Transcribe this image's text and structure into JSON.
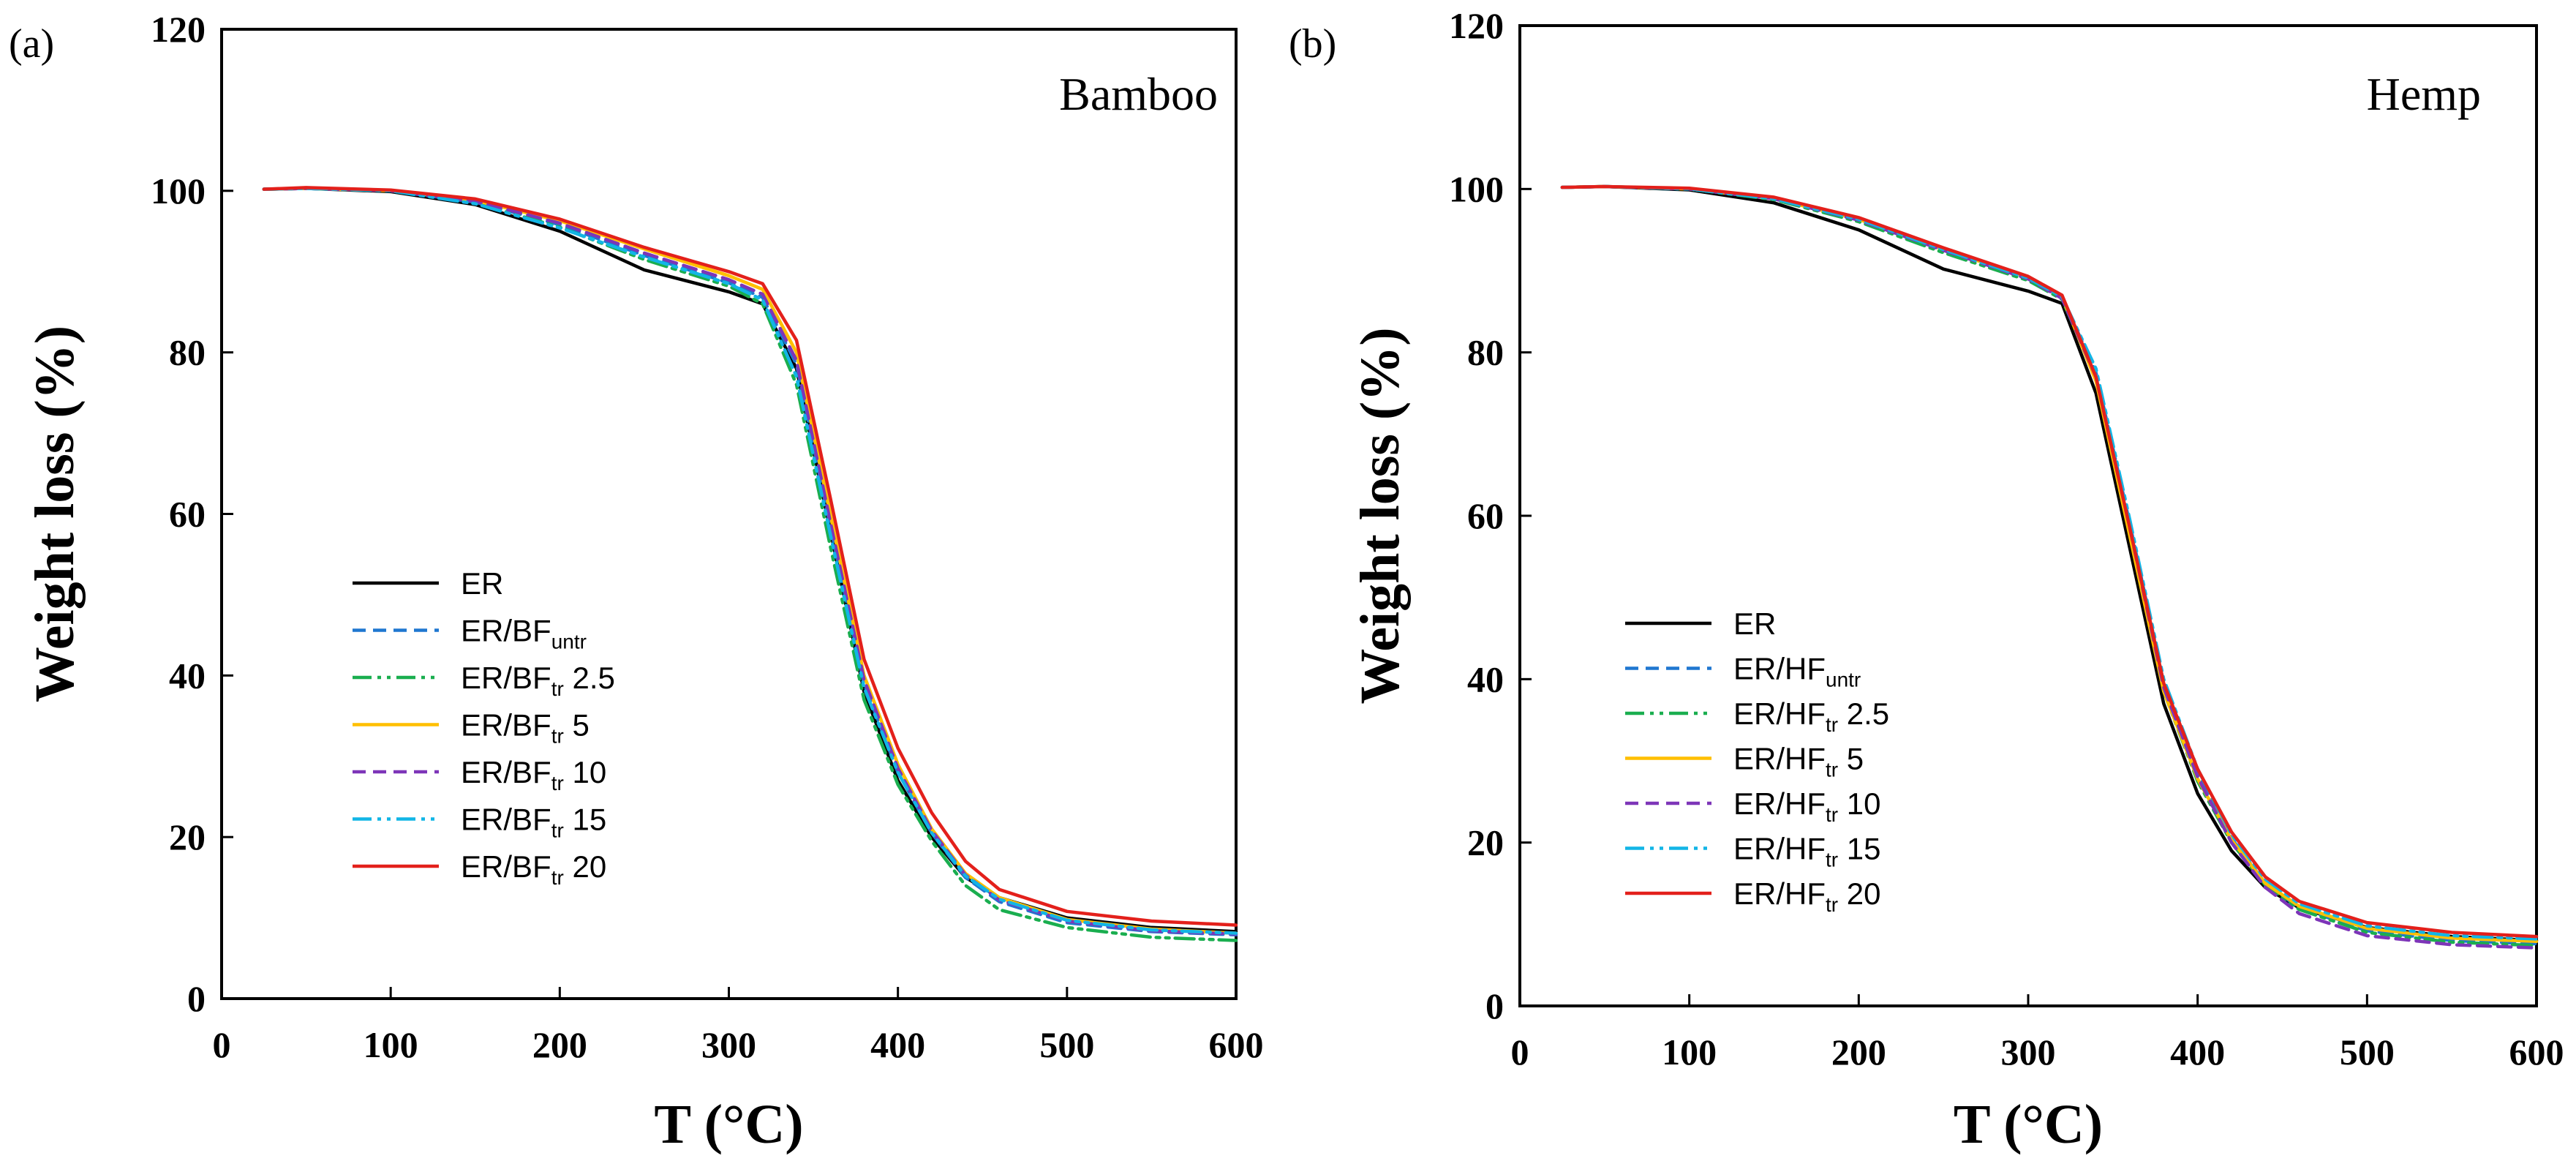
{
  "chart_data": [
    {
      "type": "line",
      "panel_label": "(a)",
      "corner_label": "Bamboo",
      "xlabel": "T (°C)",
      "ylabel": "Weight loss (%)",
      "xlim": [
        0,
        600
      ],
      "ylim": [
        0,
        120
      ],
      "xticks": [
        "0",
        "100",
        "200",
        "300",
        "400",
        "500",
        "600"
      ],
      "yticks": [
        "0",
        "20",
        "40",
        "60",
        "80",
        "100",
        "120"
      ],
      "grid": false,
      "legend_position": "center-left",
      "series": [
        {
          "name": "ER",
          "legend_main": "ER",
          "legend_sub": "",
          "legend_suffix": "",
          "color": "#000000",
          "dash": "solid",
          "x": [
            25,
            50,
            100,
            150,
            200,
            250,
            300,
            320,
            340,
            360,
            380,
            400,
            420,
            440,
            460,
            500,
            550,
            600
          ],
          "y": [
            100.2,
            100.3,
            99.9,
            98.3,
            95.0,
            90.2,
            87.5,
            86.0,
            78.0,
            58.0,
            38.0,
            27.0,
            20.0,
            15.0,
            12.5,
            10.0,
            8.8,
            8.3
          ]
        },
        {
          "name": "ER/BFuntr",
          "legend_main": "ER/BF",
          "legend_sub": "untr",
          "legend_suffix": "",
          "color": "#1f77d0",
          "dash": "dashed",
          "x": [
            25,
            50,
            100,
            150,
            200,
            250,
            300,
            320,
            340,
            360,
            380,
            400,
            420,
            440,
            460,
            500,
            550,
            600
          ],
          "y": [
            100.2,
            100.3,
            100.0,
            98.6,
            95.8,
            92.0,
            88.6,
            86.8,
            78.5,
            58.5,
            39.0,
            28.0,
            20.5,
            15.0,
            12.0,
            9.4,
            8.3,
            7.9
          ]
        },
        {
          "name": "ER/BFtr 2.5",
          "legend_main": "ER/BF",
          "legend_sub": "tr",
          "legend_suffix": " 2.5",
          "color": "#1aae4f",
          "dash": "dashdotdot",
          "x": [
            25,
            50,
            100,
            150,
            200,
            250,
            300,
            320,
            340,
            360,
            380,
            400,
            420,
            440,
            460,
            500,
            550,
            600
          ],
          "y": [
            100.2,
            100.3,
            100.0,
            98.5,
            95.5,
            91.5,
            88.2,
            86.0,
            76.0,
            56.0,
            37.0,
            26.5,
            19.5,
            14.0,
            11.0,
            8.8,
            7.6,
            7.2
          ]
        },
        {
          "name": "ER/BFtr 5",
          "legend_main": "ER/BF",
          "legend_sub": "tr",
          "legend_suffix": " 5",
          "color": "#ffbf00",
          "dash": "solid",
          "x": [
            25,
            50,
            100,
            150,
            200,
            250,
            300,
            320,
            340,
            360,
            380,
            400,
            420,
            440,
            460,
            500,
            550,
            600
          ],
          "y": [
            100.2,
            100.3,
            100.0,
            98.8,
            96.3,
            92.8,
            89.5,
            87.8,
            80.0,
            60.0,
            40.0,
            29.0,
            21.0,
            15.5,
            12.5,
            9.8,
            8.6,
            8.1
          ]
        },
        {
          "name": "ER/BFtr 10",
          "legend_main": "ER/BF",
          "legend_sub": "tr",
          "legend_suffix": " 10",
          "color": "#7d35b8",
          "dash": "dashed",
          "x": [
            25,
            50,
            100,
            150,
            200,
            250,
            300,
            320,
            340,
            360,
            380,
            400,
            420,
            440,
            460,
            500,
            550,
            600
          ],
          "y": [
            100.2,
            100.3,
            100.0,
            98.7,
            96.0,
            92.3,
            89.0,
            87.2,
            79.0,
            59.0,
            39.5,
            28.5,
            20.8,
            15.3,
            12.2,
            9.6,
            8.4,
            8.0
          ]
        },
        {
          "name": "ER/BFtr 15",
          "legend_main": "ER/BF",
          "legend_sub": "tr",
          "legend_suffix": " 15",
          "color": "#12b5e6",
          "dash": "dashdotdot",
          "x": [
            25,
            50,
            100,
            150,
            200,
            250,
            300,
            320,
            340,
            360,
            380,
            400,
            420,
            440,
            460,
            500,
            550,
            600
          ],
          "y": [
            100.2,
            100.3,
            100.0,
            98.4,
            95.4,
            91.8,
            88.5,
            86.5,
            77.0,
            57.5,
            38.5,
            28.0,
            20.5,
            15.2,
            12.3,
            9.7,
            8.5,
            8.1
          ]
        },
        {
          "name": "ER/BFtr 20",
          "legend_main": "ER/BF",
          "legend_sub": "tr",
          "legend_suffix": " 20",
          "color": "#e3201b",
          "dash": "solid",
          "x": [
            25,
            50,
            100,
            150,
            200,
            250,
            300,
            320,
            340,
            360,
            380,
            400,
            420,
            440,
            460,
            500,
            550,
            600
          ],
          "y": [
            100.2,
            100.4,
            100.1,
            99.0,
            96.5,
            93.0,
            90.0,
            88.5,
            81.5,
            62.0,
            42.0,
            31.0,
            23.0,
            17.0,
            13.5,
            10.8,
            9.6,
            9.1
          ]
        }
      ]
    },
    {
      "type": "line",
      "panel_label": "(b)",
      "corner_label": "Hemp",
      "xlabel": "T (°C)",
      "ylabel": "Weight loss (%)",
      "xlim": [
        0,
        600
      ],
      "ylim": [
        0,
        120
      ],
      "xticks": [
        "0",
        "100",
        "200",
        "300",
        "400",
        "500",
        "600"
      ],
      "yticks": [
        "0",
        "20",
        "40",
        "60",
        "80",
        "100",
        "120"
      ],
      "grid": false,
      "legend_position": "center-left",
      "series": [
        {
          "name": "ER",
          "legend_main": "ER",
          "legend_sub": "",
          "legend_suffix": "",
          "color": "#000000",
          "dash": "solid",
          "x": [
            25,
            50,
            100,
            150,
            200,
            250,
            300,
            320,
            340,
            360,
            380,
            400,
            420,
            440,
            460,
            500,
            550,
            600
          ],
          "y": [
            100.2,
            100.3,
            99.9,
            98.3,
            95.0,
            90.2,
            87.5,
            86.0,
            75.0,
            56.0,
            37.0,
            26.0,
            19.0,
            14.5,
            12.0,
            9.6,
            8.5,
            8.0
          ]
        },
        {
          "name": "ER/HFuntr",
          "legend_main": "ER/HF",
          "legend_sub": "untr",
          "legend_suffix": "",
          "color": "#1f77d0",
          "dash": "dashed",
          "x": [
            25,
            50,
            100,
            150,
            200,
            250,
            300,
            320,
            340,
            360,
            380,
            400,
            420,
            440,
            460,
            500,
            550,
            600
          ],
          "y": [
            100.2,
            100.3,
            100.0,
            98.8,
            96.2,
            92.5,
            89.0,
            86.8,
            77.5,
            59.0,
            39.5,
            28.5,
            20.5,
            15.0,
            12.0,
            9.2,
            8.0,
            7.6
          ]
        },
        {
          "name": "ER/HFtr 2.5",
          "legend_main": "ER/HF",
          "legend_sub": "tr",
          "legend_suffix": " 2.5",
          "color": "#1aae4f",
          "dash": "dashdotdot",
          "x": [
            25,
            50,
            100,
            150,
            200,
            250,
            300,
            320,
            340,
            360,
            380,
            400,
            420,
            440,
            460,
            500,
            550,
            600
          ],
          "y": [
            100.2,
            100.3,
            100.0,
            98.7,
            96.0,
            92.2,
            88.8,
            86.5,
            77.0,
            58.0,
            38.5,
            27.5,
            20.0,
            14.8,
            11.8,
            9.0,
            7.8,
            7.4
          ]
        },
        {
          "name": "ER/HFtr 5",
          "legend_main": "ER/HF",
          "legend_sub": "tr",
          "legend_suffix": " 5",
          "color": "#ffbf00",
          "dash": "solid",
          "x": [
            25,
            50,
            100,
            150,
            200,
            250,
            300,
            320,
            340,
            360,
            380,
            400,
            420,
            440,
            460,
            500,
            550,
            600
          ],
          "y": [
            100.2,
            100.3,
            100.0,
            98.8,
            96.3,
            92.6,
            89.2,
            86.8,
            76.5,
            57.5,
            38.5,
            27.8,
            20.3,
            15.0,
            12.2,
            9.5,
            8.3,
            7.9
          ]
        },
        {
          "name": "ER/HFtr 10",
          "legend_main": "ER/HF",
          "legend_sub": "tr",
          "legend_suffix": " 10",
          "color": "#7d35b8",
          "dash": "dashed",
          "x": [
            25,
            50,
            100,
            150,
            200,
            250,
            300,
            320,
            340,
            360,
            380,
            400,
            420,
            440,
            460,
            500,
            550,
            600
          ],
          "y": [
            100.2,
            100.3,
            100.0,
            98.8,
            96.2,
            92.5,
            89.0,
            86.6,
            77.0,
            58.5,
            39.0,
            28.0,
            20.0,
            14.5,
            11.3,
            8.6,
            7.5,
            7.1
          ]
        },
        {
          "name": "ER/HFtr 15",
          "legend_main": "ER/HF",
          "legend_sub": "tr",
          "legend_suffix": " 15",
          "color": "#12b5e6",
          "dash": "dashdotdot",
          "x": [
            25,
            50,
            100,
            150,
            200,
            250,
            300,
            320,
            340,
            360,
            380,
            400,
            420,
            440,
            460,
            500,
            550,
            600
          ],
          "y": [
            100.2,
            100.3,
            100.0,
            98.8,
            96.3,
            92.6,
            89.1,
            86.8,
            78.0,
            59.5,
            40.0,
            29.0,
            21.0,
            15.5,
            12.5,
            9.8,
            8.6,
            8.2
          ]
        },
        {
          "name": "ER/HFtr 20",
          "legend_main": "ER/HF",
          "legend_sub": "tr",
          "legend_suffix": " 20",
          "color": "#e3201b",
          "dash": "solid",
          "x": [
            25,
            50,
            100,
            150,
            200,
            250,
            300,
            320,
            340,
            360,
            380,
            400,
            420,
            440,
            460,
            500,
            550,
            600
          ],
          "y": [
            100.2,
            100.3,
            100.1,
            99.0,
            96.5,
            92.8,
            89.3,
            87.0,
            77.0,
            58.5,
            39.5,
            29.0,
            21.3,
            15.8,
            12.8,
            10.2,
            9.0,
            8.5
          ]
        }
      ]
    }
  ]
}
